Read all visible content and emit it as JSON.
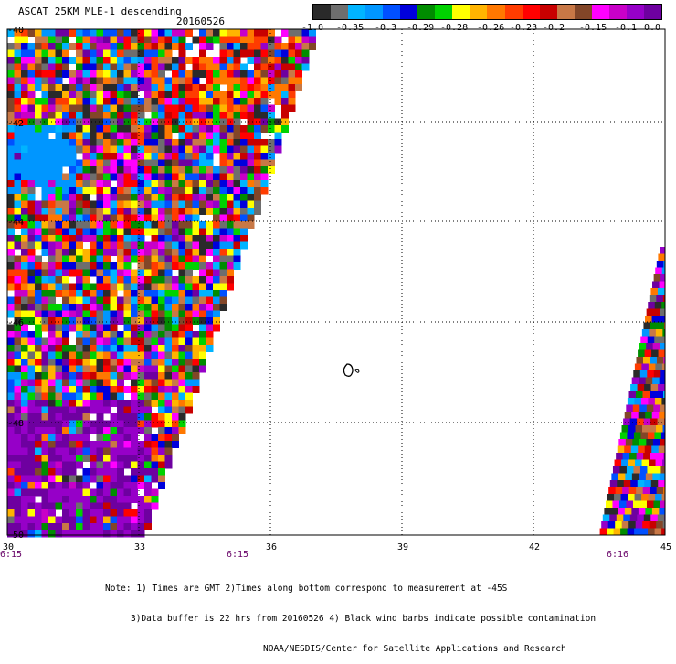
{
  "header": {
    "title": "ASCAT 25KM MLE-1 descending",
    "date": "20160526"
  },
  "colorbar": {
    "colors": [
      "#2a2a2a",
      "#6e6e6e",
      "#00b4ff",
      "#0096ff",
      "#0050ff",
      "#0000dc",
      "#008c00",
      "#00d200",
      "#ffff00",
      "#ffb400",
      "#ff7800",
      "#ff3c00",
      "#ff0000",
      "#c80000",
      "#c87846",
      "#824628",
      "#ff00ff",
      "#c800c8",
      "#9600c8",
      "#6e00a0"
    ],
    "labels": [
      "-1.0",
      "-0.35",
      "-0.3",
      "-0.29",
      "-0.28",
      "-0.26",
      "-0.23",
      "-0.2",
      "-0.15",
      "-0.1",
      "0.0"
    ]
  },
  "map": {
    "lon_range": [
      30,
      45
    ],
    "lat_range": [
      -40,
      -50
    ],
    "lat_labels": [
      "-40",
      "-42",
      "-44",
      "-46",
      "-48",
      "-50"
    ],
    "lon_labels": [
      "30",
      "33",
      "36",
      "39",
      "42",
      "45"
    ],
    "time_labels": [
      "6:15",
      "6:15",
      "6:16"
    ]
  },
  "notes": [
    "Note: 1) Times are GMT 2)Times along bottom correspond to measurement at -45S",
    "3)Data buffer is 22 hrs from 20160526 4) Black wind barbs indicate possible contamination",
    "NOAA/NESDIS/Center for Satellite Applications and Research"
  ]
}
